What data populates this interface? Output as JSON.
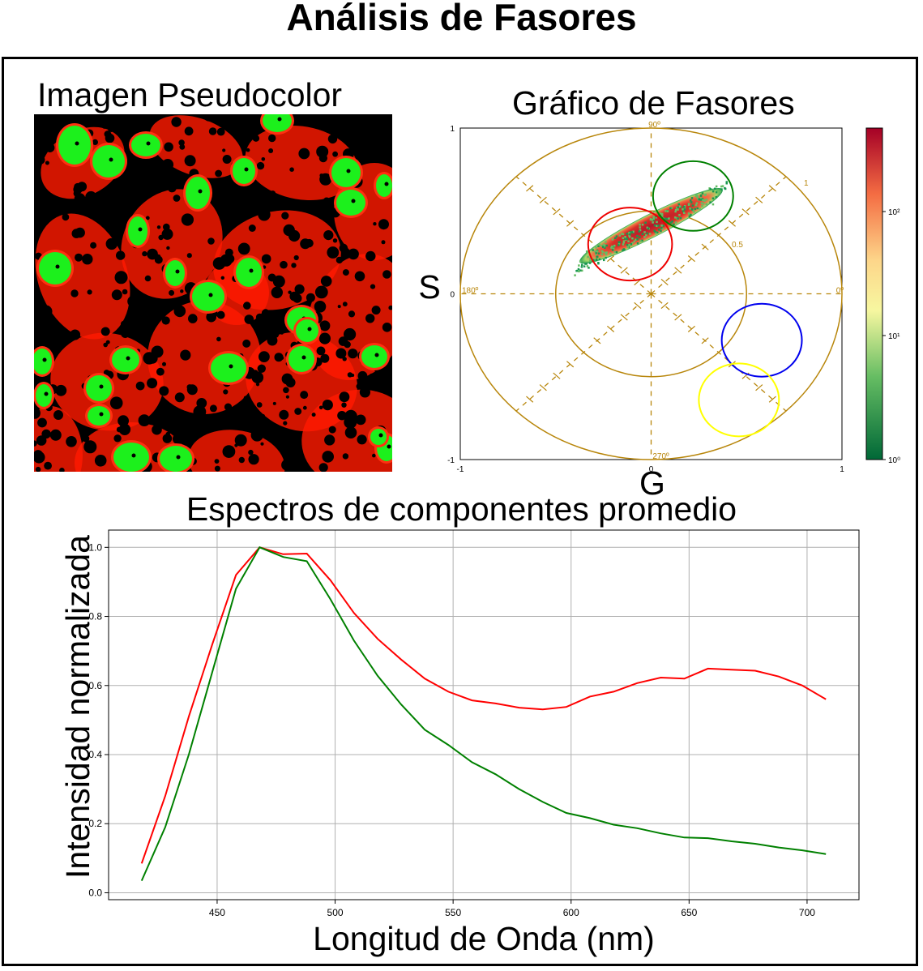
{
  "title": "Análisis de Fasores",
  "pseudocolor": {
    "title": "Imagen Pseudocolor",
    "colors": {
      "background": "#000000",
      "cytoplasm": "#ff1a00",
      "nucleus": "#1cf01c"
    }
  },
  "phasor": {
    "title": "Gráfico de Fasores",
    "xlabel": "G",
    "ylabel": "S",
    "xlim": [
      -1,
      1
    ],
    "ylim": [
      -1,
      1
    ],
    "tick_labels": {
      "x_min": "-1",
      "x_max": "1",
      "y_min": "-1",
      "y_max": "1",
      "x_zero": "0",
      "y_zero": "0"
    },
    "polar_labels": {
      "deg0": "0º",
      "deg90": "90º",
      "deg180": "180º",
      "deg270": "270º",
      "r_half": "0.5",
      "r_one": "1"
    },
    "colorbar": {
      "scale": "log",
      "ticks": [
        "10⁰",
        "10¹",
        "10²"
      ]
    },
    "regions": [
      {
        "color": "#008000",
        "g": 0.22,
        "s": 0.59,
        "rx": 0.21,
        "ry": 0.21
      },
      {
        "color": "#ee0000",
        "g": -0.11,
        "s": 0.3,
        "rx": 0.22,
        "ry": 0.22
      },
      {
        "color": "#0000ee",
        "g": 0.58,
        "s": -0.28,
        "rx": 0.21,
        "ry": 0.22
      },
      {
        "color": "#ffff00",
        "g": 0.46,
        "s": -0.64,
        "rx": 0.21,
        "ry": 0.22
      }
    ]
  },
  "chart_data": {
    "type": "line",
    "title": "Espectros de componentes promedio",
    "xlabel": "Longitud de Onda (nm)",
    "ylabel": "Intensidad normalizada",
    "xlim": [
      404,
      722
    ],
    "ylim": [
      -0.02,
      1.05
    ],
    "xticks": [
      450,
      500,
      550,
      600,
      650,
      700
    ],
    "yticks": [
      0.0,
      0.2,
      0.4,
      0.6,
      0.8,
      1.0
    ],
    "grid": true,
    "x": [
      418,
      428,
      438,
      448,
      458,
      468,
      478,
      488,
      498,
      508,
      518,
      528,
      538,
      548,
      558,
      568,
      578,
      588,
      598,
      608,
      618,
      628,
      638,
      648,
      658,
      668,
      678,
      688,
      698,
      708
    ],
    "series": [
      {
        "color": "#ff0000",
        "values": [
          0.085,
          0.28,
          0.51,
          0.72,
          0.92,
          1.0,
          0.98,
          0.982,
          0.905,
          0.81,
          0.735,
          0.675,
          0.62,
          0.582,
          0.557,
          0.548,
          0.536,
          0.531,
          0.538,
          0.568,
          0.582,
          0.607,
          0.623,
          0.62,
          0.649,
          0.646,
          0.643,
          0.626,
          0.6,
          0.56
        ]
      },
      {
        "color": "#008000",
        "values": [
          0.035,
          0.19,
          0.4,
          0.64,
          0.88,
          1.0,
          0.972,
          0.96,
          0.85,
          0.73,
          0.628,
          0.545,
          0.472,
          0.428,
          0.378,
          0.343,
          0.3,
          0.263,
          0.231,
          0.216,
          0.197,
          0.187,
          0.172,
          0.16,
          0.158,
          0.149,
          0.142,
          0.131,
          0.123,
          0.112
        ]
      }
    ]
  }
}
